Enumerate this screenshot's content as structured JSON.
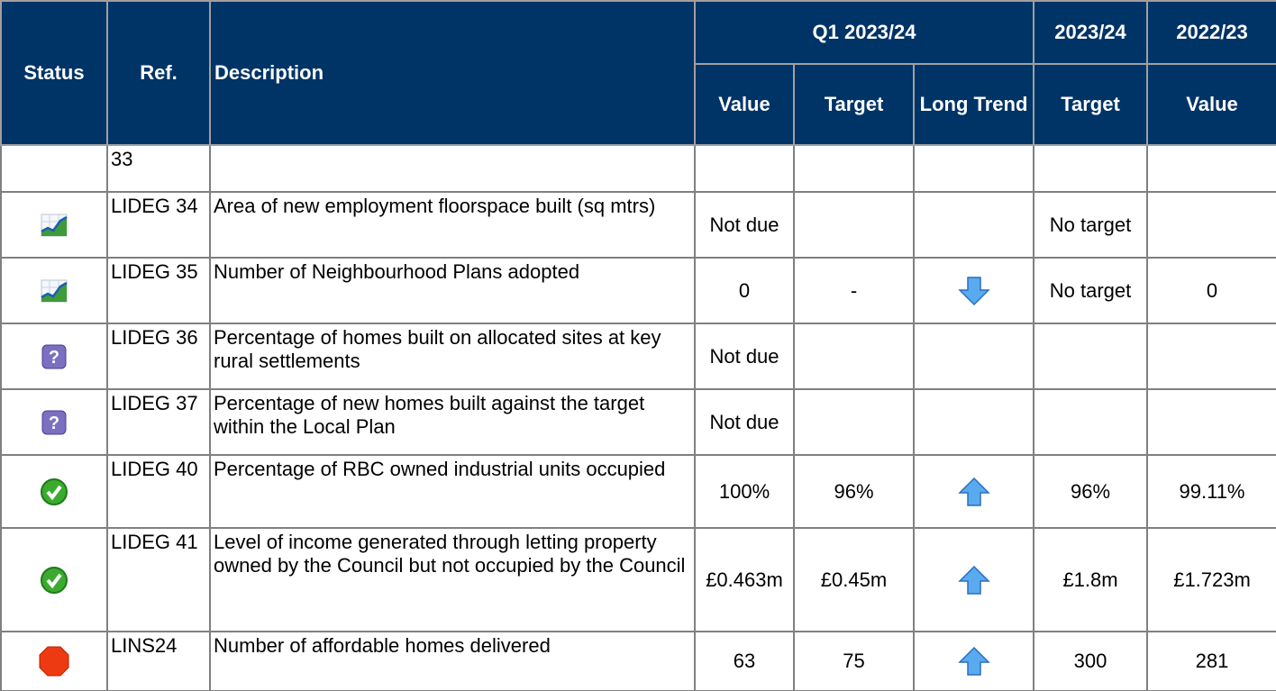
{
  "header": {
    "status": "Status",
    "ref": "Ref.",
    "description": "Description",
    "groups": [
      "Q1 2023/24",
      "2023/24",
      "2022/23"
    ],
    "columns": [
      "Value",
      "Target",
      "Long Trend",
      "Target",
      "Value"
    ]
  },
  "rows": [
    {
      "ref": "33"
    },
    {
      "ref": "LIDEG 34",
      "description": "Area of new employment floorspace built (sq mtrs)",
      "value": "Not due",
      "year_target": "No target"
    },
    {
      "ref": "LIDEG 35",
      "description": "Number of Neighbourhood Plans adopted",
      "value": "0",
      "target": "-",
      "year_target": "No target",
      "prev_value": "0"
    },
    {
      "ref": "LIDEG 36",
      "description": "Percentage of homes built on allocated sites at key rural settlements",
      "value": "Not due"
    },
    {
      "ref": "LIDEG 37",
      "description": "Percentage of new homes built against the target within the Local Plan",
      "value": "Not due"
    },
    {
      "ref": "LIDEG 40",
      "description": "Percentage of RBC owned industrial units occupied",
      "value": "100%",
      "target": "96%",
      "year_target": "96%",
      "prev_value": "99.11%"
    },
    {
      "ref": "LIDEG 41",
      "description": "Level of income generated through letting property owned by the Council but not occupied by the Council",
      "value": "£0.463m",
      "target": "£0.45m",
      "year_target": "£1.8m",
      "prev_value": "£1.723m"
    },
    {
      "ref": "LINS24",
      "description": "Number of affordable homes delivered",
      "value": "63",
      "target": "75",
      "year_target": "300",
      "prev_value": "281"
    }
  ]
}
